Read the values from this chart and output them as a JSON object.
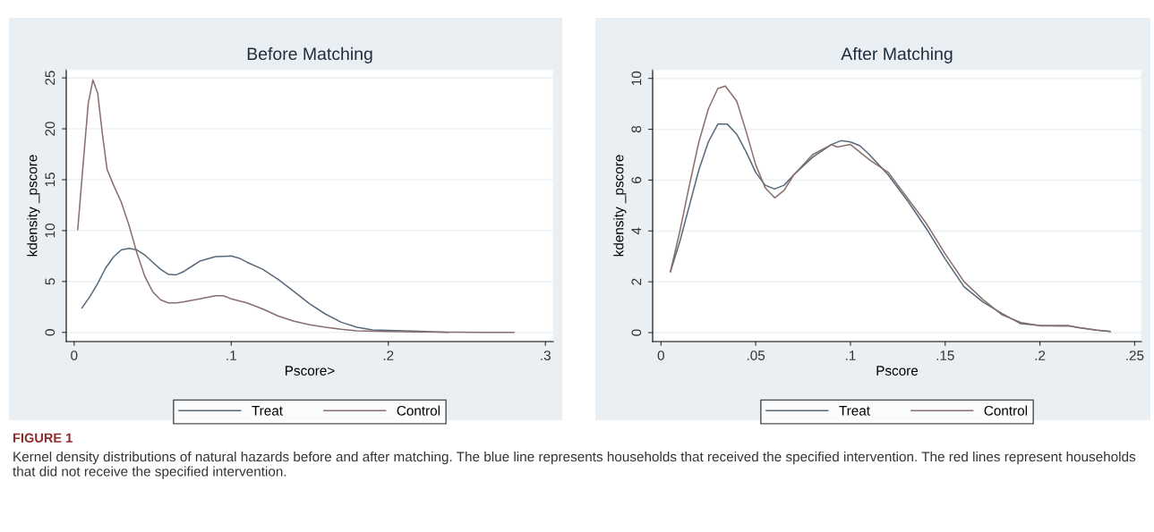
{
  "chart_data": [
    {
      "type": "line",
      "title": "Before Matching",
      "xlabel": "Pscore>",
      "ylabel": "kdensity _pscore",
      "xlim": [
        -0.005,
        0.305
      ],
      "ylim": [
        -0.9,
        25.8
      ],
      "xticks": [
        0,
        {
          "value": 0.1,
          "label": ".1"
        },
        {
          "value": 0.2,
          "label": ".2"
        },
        {
          "value": 0.3,
          "label": ".3"
        }
      ],
      "yticks": [
        0,
        5,
        10,
        15,
        20,
        25
      ],
      "grid": "y",
      "legend": "bottom",
      "series": [
        {
          "name": "Treat",
          "color": "#56687a",
          "x": [
            0.005,
            0.01,
            0.015,
            0.02,
            0.025,
            0.03,
            0.035,
            0.04,
            0.045,
            0.05,
            0.055,
            0.06,
            0.065,
            0.07,
            0.075,
            0.08,
            0.09,
            0.1,
            0.105,
            0.11,
            0.12,
            0.13,
            0.14,
            0.15,
            0.16,
            0.17,
            0.18,
            0.19,
            0.2,
            0.21,
            0.22,
            0.23,
            0.238
          ],
          "values": [
            2.4,
            3.5,
            4.8,
            6.3,
            7.4,
            8.1,
            8.25,
            8.1,
            7.6,
            6.9,
            6.2,
            5.7,
            5.65,
            6.0,
            6.5,
            7.0,
            7.45,
            7.5,
            7.3,
            6.9,
            6.2,
            5.2,
            4.0,
            2.8,
            1.8,
            1.0,
            0.5,
            0.25,
            0.2,
            0.15,
            0.1,
            0.05,
            0.0
          ]
        },
        {
          "name": "Control",
          "color": "#8a6e6e",
          "x": [
            0.0023,
            0.006,
            0.009,
            0.012,
            0.015,
            0.018,
            0.021,
            0.025,
            0.03,
            0.035,
            0.04,
            0.045,
            0.05,
            0.055,
            0.06,
            0.065,
            0.07,
            0.08,
            0.09,
            0.095,
            0.1,
            0.11,
            0.12,
            0.13,
            0.14,
            0.15,
            0.16,
            0.17,
            0.18,
            0.2,
            0.22,
            0.24,
            0.26,
            0.28
          ],
          "values": [
            10.1,
            17,
            22.5,
            24.8,
            23.5,
            19.5,
            16,
            14.5,
            12.8,
            10.5,
            7.8,
            5.5,
            4,
            3.2,
            2.9,
            2.9,
            3.0,
            3.3,
            3.6,
            3.6,
            3.3,
            2.9,
            2.3,
            1.6,
            1.1,
            0.75,
            0.5,
            0.3,
            0.15,
            0.08,
            0.05,
            0.02,
            0.01,
            0.0
          ]
        }
      ],
      "annotations": [
        "FIGURE 1",
        "Kernel density distributions of natural hazards before and after matching. The blue line represents households that received the specified intervention. The red lines represent households that did not receive the specified intervention."
      ]
    },
    {
      "type": "line",
      "title": "After Matching",
      "xlabel": "Pscore",
      "ylabel": "kdensity _pscore",
      "xlim": [
        -0.0044,
        0.2536
      ],
      "ylim": [
        -0.35,
        10.34
      ],
      "xticks": [
        0,
        {
          "value": 0.05,
          "label": ".05"
        },
        {
          "value": 0.1,
          "label": ".1"
        },
        {
          "value": 0.15,
          "label": ".15"
        },
        {
          "value": 0.2,
          "label": ".2"
        },
        {
          "value": 0.25,
          "label": ".25"
        }
      ],
      "yticks": [
        0,
        2,
        4,
        6,
        8,
        10
      ],
      "grid": "y",
      "legend": "bottom",
      "series": [
        {
          "name": "Treat",
          "color": "#56687a",
          "x": [
            0.005,
            0.01,
            0.015,
            0.02,
            0.025,
            0.03,
            0.035,
            0.04,
            0.045,
            0.05,
            0.055,
            0.06,
            0.065,
            0.07,
            0.08,
            0.09,
            0.095,
            0.1,
            0.105,
            0.11,
            0.12,
            0.13,
            0.14,
            0.15,
            0.16,
            0.17,
            0.18,
            0.19,
            0.2,
            0.21,
            0.215,
            0.22,
            0.23,
            0.237
          ],
          "values": [
            2.4,
            3.6,
            5.0,
            6.4,
            7.5,
            8.2,
            8.2,
            7.8,
            7.1,
            6.3,
            5.8,
            5.65,
            5.8,
            6.2,
            6.9,
            7.4,
            7.55,
            7.5,
            7.35,
            7.0,
            6.2,
            5.2,
            4.1,
            2.9,
            1.8,
            1.2,
            0.75,
            0.35,
            0.28,
            0.27,
            0.27,
            0.2,
            0.1,
            0.05
          ]
        },
        {
          "name": "Control",
          "color": "#8a6e6e",
          "x": [
            0.005,
            0.01,
            0.015,
            0.02,
            0.025,
            0.03,
            0.034,
            0.04,
            0.045,
            0.05,
            0.055,
            0.06,
            0.065,
            0.07,
            0.08,
            0.09,
            0.093,
            0.1,
            0.105,
            0.11,
            0.12,
            0.13,
            0.14,
            0.15,
            0.16,
            0.17,
            0.18,
            0.19,
            0.2,
            0.21,
            0.215,
            0.22,
            0.23,
            0.237
          ],
          "values": [
            2.4,
            4.0,
            5.8,
            7.5,
            8.8,
            9.6,
            9.7,
            9.1,
            7.9,
            6.6,
            5.7,
            5.3,
            5.6,
            6.2,
            7.0,
            7.4,
            7.3,
            7.4,
            7.1,
            6.8,
            6.3,
            5.3,
            4.3,
            3.1,
            2.0,
            1.3,
            0.7,
            0.4,
            0.27,
            0.27,
            0.27,
            0.2,
            0.1,
            0.05
          ]
        }
      ]
    }
  ]
}
